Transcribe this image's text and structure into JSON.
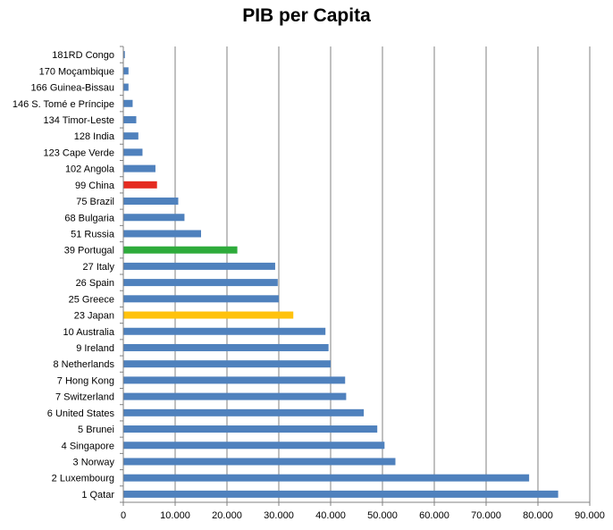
{
  "chart_data": {
    "type": "bar",
    "orientation": "horizontal",
    "title": "PIB per Capita",
    "xlabel": "",
    "ylabel": "",
    "xlim": [
      0,
      90000
    ],
    "x_ticks": [
      {
        "value": 0,
        "label": "0"
      },
      {
        "value": 10000,
        "label": "10.000"
      },
      {
        "value": 20000,
        "label": "20.000"
      },
      {
        "value": 30000,
        "label": "30.000"
      },
      {
        "value": 40000,
        "label": "40.000"
      },
      {
        "value": 50000,
        "label": "50.000"
      },
      {
        "value": 60000,
        "label": "60.000"
      },
      {
        "value": 70000,
        "label": "70.000"
      },
      {
        "value": 80000,
        "label": "80.000"
      },
      {
        "value": 90000,
        "label": "90.000"
      }
    ],
    "grid": "vertical",
    "legend": "none",
    "colors": {
      "default": "#4F81BD",
      "highlight_red": "#E52B20",
      "highlight_green": "#2EAB3B",
      "highlight_yellow": "#FFC20E",
      "grid": "#808080",
      "axis": "#808080"
    },
    "categories": [
      "181RD Congo",
      "170 Moçambique",
      "166 Guinea-Bissau",
      "146 S. Tomé e Príncipe",
      "134 Timor-Leste",
      "128 India",
      "123 Cape Verde",
      "102 Angola",
      "99 China",
      "75 Brazil",
      "68 Bulgaria",
      "51 Russia",
      "39 Portugal",
      "27 Italy",
      "26 Spain",
      "25 Greece",
      "23 Japan",
      "10 Australia",
      "9 Ireland",
      "8 Netherlands",
      "7 Hong Kong",
      "7 Switzerland",
      "6 United States",
      "5 Brunei",
      "4 Singapore",
      "3 Norway",
      "2 Luxembourg",
      "1 Qatar"
    ],
    "values": [
      300,
      1000,
      1000,
      1800,
      2500,
      2900,
      3700,
      6200,
      6500,
      10600,
      11800,
      15000,
      22000,
      29300,
      29800,
      30000,
      32800,
      39000,
      39600,
      40000,
      42800,
      43000,
      46400,
      49000,
      50400,
      52500,
      78300,
      83900
    ],
    "bar_colors": [
      "#4F81BD",
      "#4F81BD",
      "#4F81BD",
      "#4F81BD",
      "#4F81BD",
      "#4F81BD",
      "#4F81BD",
      "#4F81BD",
      "#E52B20",
      "#4F81BD",
      "#4F81BD",
      "#4F81BD",
      "#2EAB3B",
      "#4F81BD",
      "#4F81BD",
      "#4F81BD",
      "#FFC20E",
      "#4F81BD",
      "#4F81BD",
      "#4F81BD",
      "#4F81BD",
      "#4F81BD",
      "#4F81BD",
      "#4F81BD",
      "#4F81BD",
      "#4F81BD",
      "#4F81BD",
      "#4F81BD"
    ]
  }
}
